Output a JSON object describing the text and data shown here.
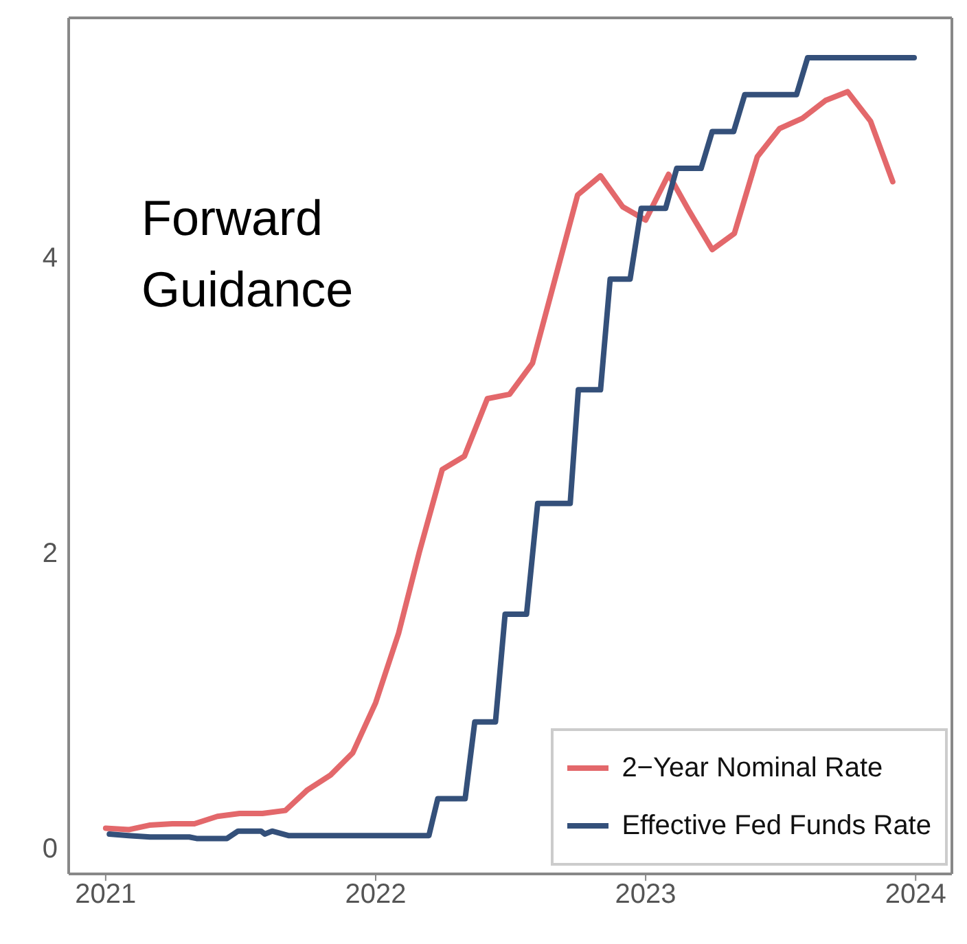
{
  "chart_data": {
    "type": "line",
    "annotations": [
      "Forward Guidance"
    ],
    "xlim": [
      "2020-11-12",
      "2024-02-19"
    ],
    "xticks": [
      "2021",
      "2022",
      "2023",
      "2024"
    ],
    "ylim": [
      -0.18,
      5.62
    ],
    "yticks": [
      0,
      2,
      4
    ],
    "legend": "bottom right",
    "marker": "none",
    "line_style": "solid",
    "series": [
      {
        "name": "2−Year Nominal Rate",
        "color": "#e3686b",
        "x": [
          "2021-01",
          "2021-02",
          "2021-03",
          "2021-04",
          "2021-05",
          "2021-06",
          "2021-07",
          "2021-08",
          "2021-09",
          "2021-10",
          "2021-11",
          "2021-12",
          "2022-01",
          "2022-02",
          "2022-03",
          "2022-04",
          "2022-05",
          "2022-06",
          "2022-07",
          "2022-08",
          "2022-09",
          "2022-10",
          "2022-11",
          "2022-12",
          "2023-01",
          "2023-02",
          "2023-03",
          "2023-04",
          "2023-05",
          "2023-06",
          "2023-07",
          "2023-08",
          "2023-09",
          "2023-10",
          "2023-11",
          "2023-12"
        ],
        "values": [
          0.13,
          0.12,
          0.15,
          0.16,
          0.16,
          0.21,
          0.23,
          0.23,
          0.25,
          0.39,
          0.49,
          0.64,
          0.98,
          1.45,
          2.0,
          2.56,
          2.65,
          3.04,
          3.07,
          3.28,
          3.86,
          4.42,
          4.55,
          4.34,
          4.25,
          4.56,
          4.31,
          4.05,
          4.16,
          4.68,
          4.87,
          4.94,
          5.06,
          5.12,
          4.92,
          4.51
        ]
      },
      {
        "name": "Effective Fed Funds Rate",
        "color": "#34507a",
        "x": [
          "2021-01-06",
          "2021-02-01",
          "2021-03-02",
          "2021-04-24",
          "2021-05-04",
          "2021-06-14",
          "2021-06-29",
          "2021-07-30",
          "2021-08-04",
          "2021-08-14",
          "2021-09-05",
          "2022-03-14",
          "2022-03-26",
          "2022-05-02",
          "2022-05-15",
          "2022-06-12",
          "2022-06-25",
          "2022-07-24",
          "2022-08-08",
          "2022-09-21",
          "2022-10-02",
          "2022-11-01",
          "2022-11-14",
          "2022-12-11",
          "2022-12-26",
          "2023-01-28",
          "2023-02-12",
          "2023-03-17",
          "2023-04-01",
          "2023-04-30",
          "2023-05-15",
          "2023-07-24",
          "2023-08-08",
          "2023-12-30"
        ],
        "values": [
          0.09,
          0.08,
          0.07,
          0.07,
          0.06,
          0.06,
          0.11,
          0.11,
          0.09,
          0.11,
          0.08,
          0.08,
          0.33,
          0.33,
          0.85,
          0.85,
          1.58,
          1.58,
          2.33,
          2.33,
          3.1,
          3.1,
          3.85,
          3.85,
          4.33,
          4.33,
          4.6,
          4.6,
          4.85,
          4.85,
          5.1,
          5.1,
          5.35,
          5.35
        ]
      }
    ]
  }
}
